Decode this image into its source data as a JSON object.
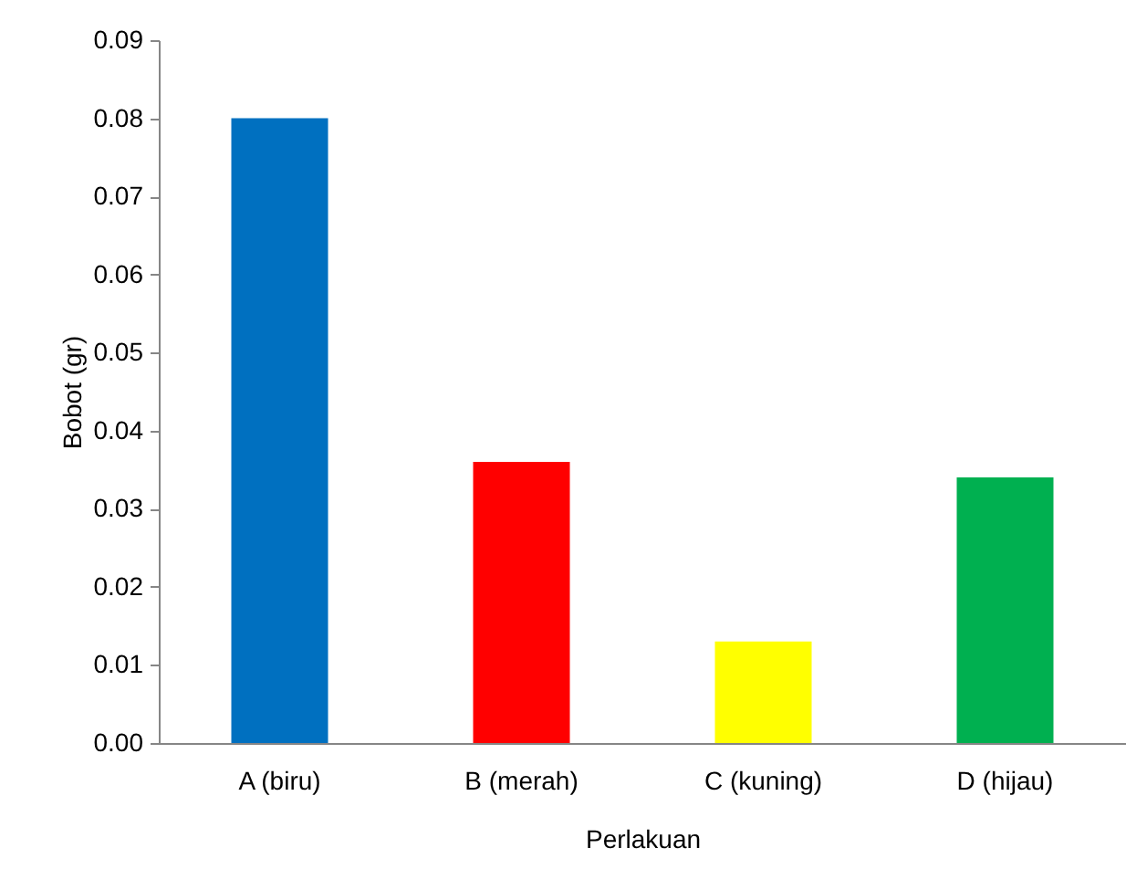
{
  "chart_data": {
    "type": "bar",
    "xlabel": "Perlakuan",
    "ylabel": "Bobot (gr)",
    "categories": [
      "A (biru)",
      "B (merah)",
      "C (kuning)",
      "D (hijau)"
    ],
    "values": [
      0.08,
      0.036,
      0.013,
      0.034
    ],
    "colors": [
      "#0070c0",
      "#ff0000",
      "#ffff00",
      "#00b050"
    ],
    "ylim": [
      0,
      0.09
    ],
    "yticks": [
      {
        "value": 0,
        "label": "0.00"
      },
      0.01,
      0.02,
      0.03,
      0.04,
      0.05,
      0.06,
      0.07,
      0.08,
      0.09
    ],
    "grid": false
  }
}
